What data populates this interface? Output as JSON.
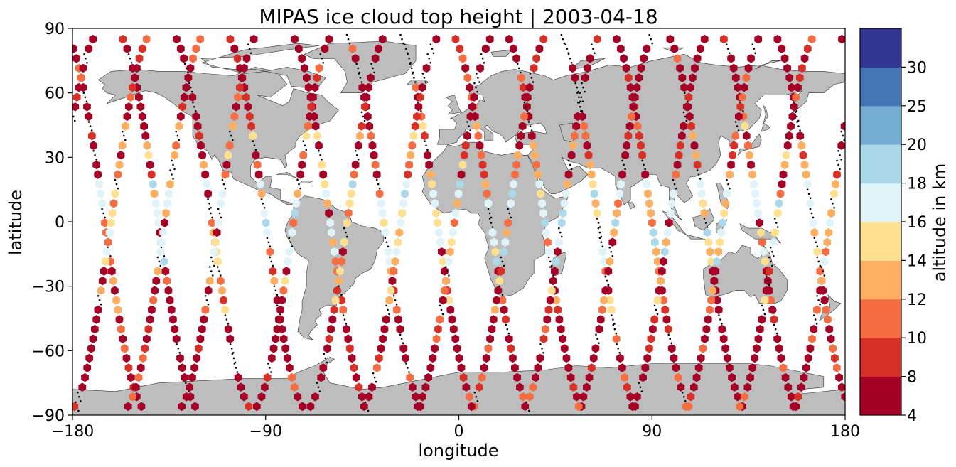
{
  "chart_data": {
    "type": "scatter",
    "title": "MIPAS ice cloud top height | 2003-04-18",
    "xlabel": "longitude",
    "ylabel": "latitude",
    "xlim": [
      -180,
      180
    ],
    "ylim": [
      -90,
      90
    ],
    "xticks": [
      -180,
      -90,
      0,
      90,
      180
    ],
    "yticks": [
      -90,
      -60,
      -30,
      0,
      30,
      60,
      90
    ],
    "xtick_labels": [
      "−180",
      "−90",
      "0",
      "90",
      "180"
    ],
    "ytick_labels": [
      "−90",
      "−60",
      "−30",
      "0",
      "30",
      "60",
      "90"
    ],
    "grid": false,
    "marker": "hexagon",
    "colorbar": {
      "label": "altitude in km",
      "bounds": [
        4,
        8,
        10,
        12,
        14,
        16,
        18,
        20,
        25,
        30
      ],
      "tick_labels": [
        "4",
        "8",
        "10",
        "12",
        "14",
        "16",
        "18",
        "20",
        "25",
        "30"
      ],
      "colors": [
        "#a50026",
        "#d73027",
        "#f46d43",
        "#fdae61",
        "#fee090",
        "#e0f3f8",
        "#abd9e9",
        "#74add1",
        "#4575b4",
        "#313695"
      ]
    },
    "background": {
      "land_color": "#bdbdbd",
      "coast_color": "#333333",
      "ocean_color": "#ffffff"
    },
    "no_cloud_color": "#000000",
    "orbits": [
      {
        "name": "o1",
        "kind": "asc",
        "lon0": -60,
        "offset": 0
      },
      {
        "name": "o2",
        "kind": "asc",
        "lon0": -35,
        "offset": 1
      },
      {
        "name": "o3",
        "kind": "asc",
        "lon0": -10,
        "offset": 2
      },
      {
        "name": "o4",
        "kind": "asc",
        "lon0": 15,
        "offset": 3
      },
      {
        "name": "o5",
        "kind": "asc",
        "lon0": 40,
        "offset": 4
      },
      {
        "name": "o6",
        "kind": "asc",
        "lon0": 65,
        "offset": 5
      },
      {
        "name": "o7",
        "kind": "asc",
        "lon0": 90,
        "offset": 6
      },
      {
        "name": "o8",
        "kind": "asc",
        "lon0": 115,
        "offset": 7
      },
      {
        "name": "o9",
        "kind": "asc",
        "lon0": 140,
        "offset": 8
      },
      {
        "name": "o10",
        "kind": "asc",
        "lon0": 165,
        "offset": 9
      },
      {
        "name": "o11",
        "kind": "asc",
        "lon0": -165,
        "offset": 10
      },
      {
        "name": "o12",
        "kind": "asc",
        "lon0": -140,
        "offset": 11
      },
      {
        "name": "o13",
        "kind": "asc",
        "lon0": -115,
        "offset": 12
      },
      {
        "name": "o14",
        "kind": "asc",
        "lon0": -90,
        "offset": 13
      },
      {
        "name": "d1",
        "kind": "desc",
        "lon0": -77,
        "offset": 0
      },
      {
        "name": "d2",
        "kind": "desc",
        "lon0": -52,
        "offset": 1
      },
      {
        "name": "d3",
        "kind": "desc",
        "lon0": -27,
        "offset": 2
      },
      {
        "name": "d4",
        "kind": "desc",
        "lon0": -2,
        "offset": 3
      },
      {
        "name": "d5",
        "kind": "desc",
        "lon0": 23,
        "offset": 4
      },
      {
        "name": "d6",
        "kind": "desc",
        "lon0": 48,
        "offset": 5
      },
      {
        "name": "d7",
        "kind": "desc",
        "lon0": 73,
        "offset": 6
      },
      {
        "name": "d8",
        "kind": "desc",
        "lon0": 98,
        "offset": 7
      },
      {
        "name": "d9",
        "kind": "desc",
        "lon0": 123,
        "offset": 8
      },
      {
        "name": "d10",
        "kind": "desc",
        "lon0": 148,
        "offset": 9
      },
      {
        "name": "d11",
        "kind": "desc",
        "lon0": 173,
        "offset": 10
      },
      {
        "name": "d12",
        "kind": "desc",
        "lon0": -162,
        "offset": 11
      },
      {
        "name": "d13",
        "kind": "desc",
        "lon0": -137,
        "offset": 12
      },
      {
        "name": "d14",
        "kind": "desc",
        "lon0": -112,
        "offset": 13
      }
    ]
  }
}
